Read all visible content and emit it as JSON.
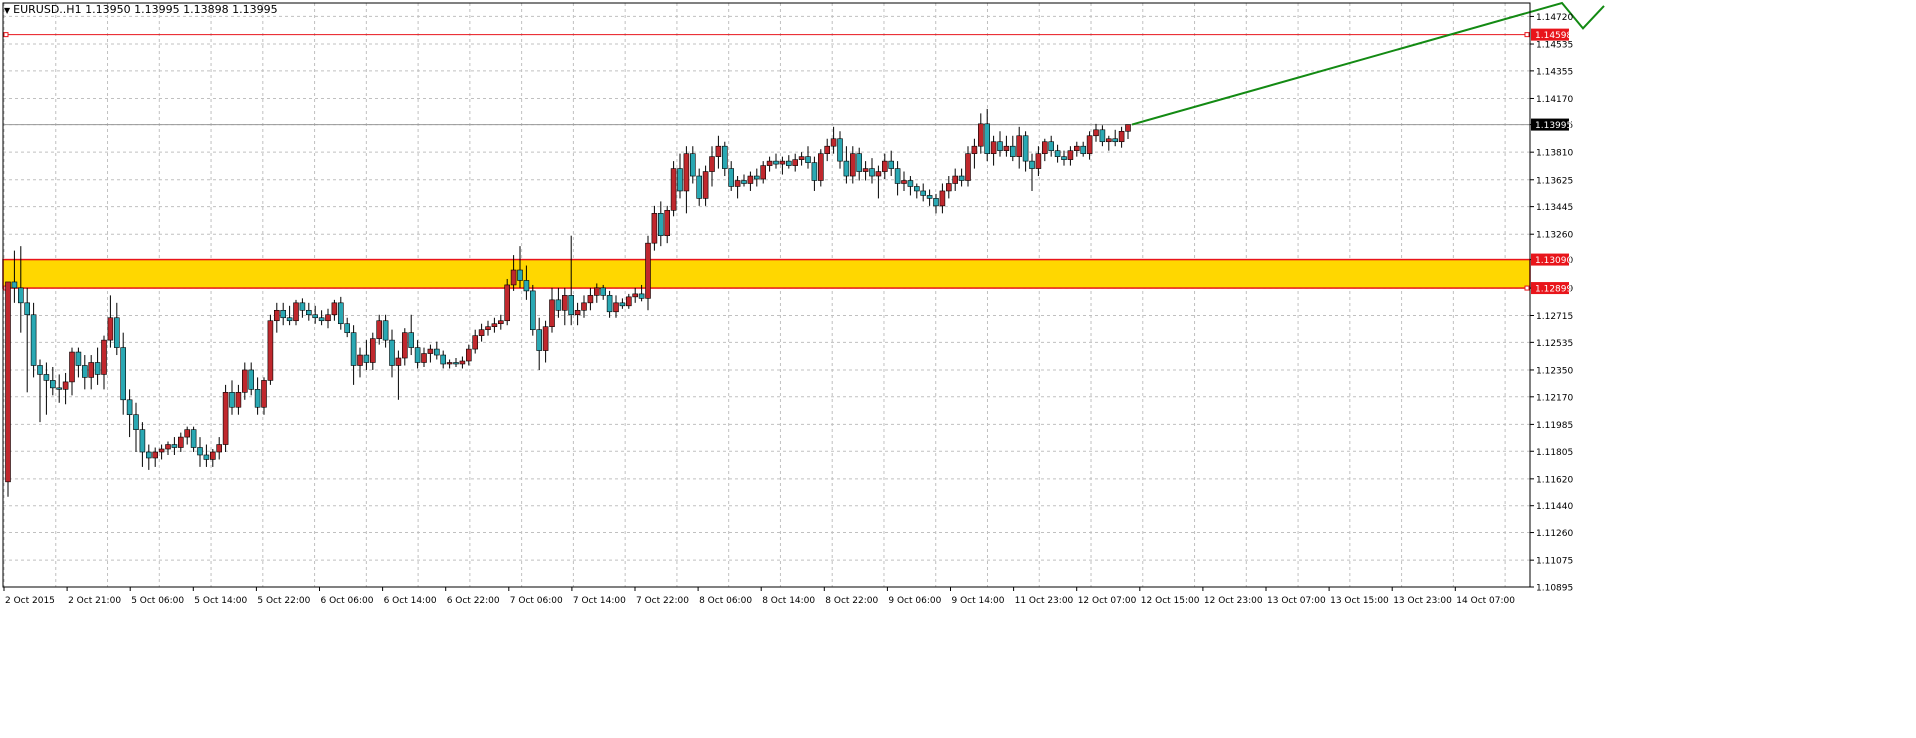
{
  "header": {
    "symbol": "EURUSD..H1",
    "open": "1.13950",
    "high": "1.13995",
    "low": "1.13898",
    "close": "1.13995"
  },
  "colors": {
    "background": "#ffffff",
    "grid": "#c0c0c0",
    "bull_candle": "#c0282d",
    "bear_candle": "#2aa8b3",
    "wick": "#000000",
    "zone_fill": "#ffd700",
    "zone_border": "#e8151b",
    "resistance_line": "#e8151b",
    "current_price_line": "#9a9a9a",
    "projection": "#138a13",
    "axis_tag_bg": "#e8151b",
    "current_tag_bg": "#000000"
  },
  "chart_data": {
    "type": "candlestick",
    "timeframe": "H1",
    "grid": true,
    "ylim": [
      1.10895,
      1.1481
    ],
    "y_ticks": [
      "1.14720",
      "1.14535",
      "1.14355",
      "1.14170",
      "1.13995",
      "1.13810",
      "1.13625",
      "1.13445",
      "1.13260",
      "1.13090",
      "1.12899",
      "1.12715",
      "1.12535",
      "1.12350",
      "1.12170",
      "1.11985",
      "1.11805",
      "1.11620",
      "1.11440",
      "1.11260",
      "1.11075",
      "1.10895"
    ],
    "x_ticks": [
      "2 Oct 2015",
      "2 Oct 21:00",
      "5 Oct 06:00",
      "5 Oct 14:00",
      "5 Oct 22:00",
      "6 Oct 06:00",
      "6 Oct 14:00",
      "6 Oct 22:00",
      "7 Oct 06:00",
      "7 Oct 14:00",
      "7 Oct 22:00",
      "8 Oct 06:00",
      "8 Oct 14:00",
      "8 Oct 22:00",
      "9 Oct 06:00",
      "9 Oct 14:00",
      "11 Oct 23:00",
      "12 Oct 07:00",
      "12 Oct 15:00",
      "12 Oct 23:00",
      "13 Oct 07:00",
      "13 Oct 15:00",
      "13 Oct 23:00",
      "14 Oct 07:00"
    ],
    "levels": {
      "resistance": "1.14598",
      "zone_top": "1.13090",
      "zone_bottom": "1.12899",
      "current": "1.13995"
    },
    "candles": [
      [
        1.116,
        1.1294,
        1.115,
        1.1294
      ],
      [
        1.1294,
        1.1315,
        1.128,
        1.129
      ],
      [
        1.129,
        1.1318,
        1.126,
        1.128
      ],
      [
        1.128,
        1.129,
        1.122,
        1.1272
      ],
      [
        1.1272,
        1.128,
        1.123,
        1.1238
      ],
      [
        1.1238,
        1.1242,
        1.12,
        1.1232
      ],
      [
        1.1232,
        1.124,
        1.1205,
        1.1228
      ],
      [
        1.1228,
        1.1237,
        1.1218,
        1.1223
      ],
      [
        1.1223,
        1.1232,
        1.1213,
        1.1222
      ],
      [
        1.1222,
        1.1233,
        1.1212,
        1.1227
      ],
      [
        1.1227,
        1.125,
        1.1218,
        1.1247
      ],
      [
        1.1247,
        1.125,
        1.123,
        1.1238
      ],
      [
        1.1238,
        1.1245,
        1.1222,
        1.123
      ],
      [
        1.123,
        1.1245,
        1.1222,
        1.124
      ],
      [
        1.124,
        1.125,
        1.1225,
        1.1232
      ],
      [
        1.1232,
        1.1258,
        1.1222,
        1.1255
      ],
      [
        1.1255,
        1.1285,
        1.125,
        1.127
      ],
      [
        1.127,
        1.128,
        1.1245,
        1.125
      ],
      [
        1.125,
        1.126,
        1.1205,
        1.1215
      ],
      [
        1.1215,
        1.1222,
        1.119,
        1.1205
      ],
      [
        1.1205,
        1.1213,
        1.118,
        1.1195
      ],
      [
        1.1195,
        1.12,
        1.117,
        1.118
      ],
      [
        1.118,
        1.1185,
        1.1168,
        1.1176
      ],
      [
        1.1176,
        1.1183,
        1.117,
        1.118
      ],
      [
        1.118,
        1.1185,
        1.1175,
        1.1182
      ],
      [
        1.1182,
        1.1187,
        1.1178,
        1.1185
      ],
      [
        1.1185,
        1.119,
        1.1178,
        1.1183
      ],
      [
        1.1183,
        1.1193,
        1.118,
        1.119
      ],
      [
        1.119,
        1.1197,
        1.1185,
        1.1195
      ],
      [
        1.1195,
        1.1197,
        1.118,
        1.1183
      ],
      [
        1.1183,
        1.119,
        1.117,
        1.1178
      ],
      [
        1.1178,
        1.1185,
        1.117,
        1.1175
      ],
      [
        1.1175,
        1.1182,
        1.117,
        1.118
      ],
      [
        1.118,
        1.119,
        1.1175,
        1.1185
      ],
      [
        1.1185,
        1.1225,
        1.118,
        1.122
      ],
      [
        1.122,
        1.1228,
        1.1205,
        1.121
      ],
      [
        1.121,
        1.1225,
        1.1205,
        1.122
      ],
      [
        1.122,
        1.124,
        1.1215,
        1.1235
      ],
      [
        1.1235,
        1.124,
        1.1218,
        1.1222
      ],
      [
        1.1222,
        1.123,
        1.1205,
        1.121
      ],
      [
        1.121,
        1.123,
        1.1205,
        1.1228
      ],
      [
        1.1228,
        1.1272,
        1.1225,
        1.1268
      ],
      [
        1.1268,
        1.128,
        1.126,
        1.1275
      ],
      [
        1.1275,
        1.128,
        1.1265,
        1.127
      ],
      [
        1.127,
        1.1278,
        1.1265,
        1.1268
      ],
      [
        1.1268,
        1.1282,
        1.1265,
        1.128
      ],
      [
        1.128,
        1.1283,
        1.127,
        1.1275
      ],
      [
        1.1275,
        1.128,
        1.1268,
        1.1272
      ],
      [
        1.1272,
        1.1278,
        1.1266,
        1.127
      ],
      [
        1.127,
        1.1275,
        1.1265,
        1.1268
      ],
      [
        1.1268,
        1.1276,
        1.1263,
        1.1272
      ],
      [
        1.1272,
        1.1282,
        1.1268,
        1.128
      ],
      [
        1.128,
        1.1284,
        1.1262,
        1.1266
      ],
      [
        1.1266,
        1.127,
        1.1257,
        1.126
      ],
      [
        1.126,
        1.1265,
        1.1225,
        1.1238
      ],
      [
        1.1238,
        1.125,
        1.123,
        1.1245
      ],
      [
        1.1245,
        1.1255,
        1.1235,
        1.124
      ],
      [
        1.124,
        1.126,
        1.1235,
        1.1256
      ],
      [
        1.1256,
        1.1272,
        1.1252,
        1.1268
      ],
      [
        1.1268,
        1.1272,
        1.125,
        1.1255
      ],
      [
        1.1255,
        1.1262,
        1.123,
        1.1238
      ],
      [
        1.1238,
        1.1248,
        1.1215,
        1.1243
      ],
      [
        1.1243,
        1.1263,
        1.1238,
        1.126
      ],
      [
        1.126,
        1.1272,
        1.1245,
        1.125
      ],
      [
        1.125,
        1.1255,
        1.1236,
        1.124
      ],
      [
        1.124,
        1.125,
        1.1237,
        1.1246
      ],
      [
        1.1246,
        1.1252,
        1.124,
        1.1249
      ],
      [
        1.1249,
        1.1254,
        1.1242,
        1.1245
      ],
      [
        1.1245,
        1.1248,
        1.1236,
        1.1239
      ],
      [
        1.1239,
        1.1242,
        1.1236,
        1.124
      ],
      [
        1.124,
        1.1243,
        1.1237,
        1.1239
      ],
      [
        1.1239,
        1.1244,
        1.1236,
        1.1241
      ],
      [
        1.1241,
        1.1252,
        1.1238,
        1.1249
      ],
      [
        1.1249,
        1.1262,
        1.1246,
        1.1258
      ],
      [
        1.1258,
        1.1266,
        1.1254,
        1.1262
      ],
      [
        1.1262,
        1.1268,
        1.1258,
        1.1264
      ],
      [
        1.1264,
        1.127,
        1.126,
        1.1266
      ],
      [
        1.1266,
        1.1272,
        1.1262,
        1.1268
      ],
      [
        1.1268,
        1.1296,
        1.1265,
        1.1292
      ],
      [
        1.1292,
        1.1312,
        1.1288,
        1.1302
      ],
      [
        1.1302,
        1.1318,
        1.129,
        1.1295
      ],
      [
        1.1295,
        1.1305,
        1.1282,
        1.1288
      ],
      [
        1.1288,
        1.1292,
        1.1258,
        1.1262
      ],
      [
        1.1262,
        1.127,
        1.1235,
        1.1248
      ],
      [
        1.1248,
        1.1268,
        1.124,
        1.1264
      ],
      [
        1.1264,
        1.129,
        1.126,
        1.1282
      ],
      [
        1.1282,
        1.129,
        1.127,
        1.1275
      ],
      [
        1.1275,
        1.129,
        1.1265,
        1.1285
      ],
      [
        1.1285,
        1.1325,
        1.1265,
        1.1272
      ],
      [
        1.1272,
        1.128,
        1.1265,
        1.1275
      ],
      [
        1.1275,
        1.1285,
        1.127,
        1.128
      ],
      [
        1.128,
        1.129,
        1.1275,
        1.1285
      ],
      [
        1.1285,
        1.1293,
        1.128,
        1.129
      ],
      [
        1.129,
        1.1292,
        1.1282,
        1.1285
      ],
      [
        1.1285,
        1.1288,
        1.127,
        1.1274
      ],
      [
        1.1274,
        1.1285,
        1.127,
        1.128
      ],
      [
        1.128,
        1.1283,
        1.1276,
        1.1278
      ],
      [
        1.1278,
        1.1286,
        1.1276,
        1.1284
      ],
      [
        1.1284,
        1.129,
        1.128,
        1.1286
      ],
      [
        1.1286,
        1.1292,
        1.1281,
        1.1283
      ],
      [
        1.1283,
        1.1325,
        1.1275,
        1.132
      ],
      [
        1.132,
        1.1345,
        1.1315,
        1.134
      ],
      [
        1.134,
        1.1348,
        1.1318,
        1.1325
      ],
      [
        1.1325,
        1.1345,
        1.132,
        1.1342
      ],
      [
        1.1342,
        1.1375,
        1.1338,
        1.137
      ],
      [
        1.137,
        1.138,
        1.135,
        1.1355
      ],
      [
        1.1355,
        1.1385,
        1.134,
        1.138
      ],
      [
        1.138,
        1.1385,
        1.136,
        1.1365
      ],
      [
        1.1365,
        1.137,
        1.1345,
        1.135
      ],
      [
        1.135,
        1.1372,
        1.1345,
        1.1368
      ],
      [
        1.1368,
        1.1385,
        1.1358,
        1.1378
      ],
      [
        1.1378,
        1.1392,
        1.137,
        1.1385
      ],
      [
        1.1385,
        1.1388,
        1.1365,
        1.137
      ],
      [
        1.137,
        1.1375,
        1.1355,
        1.1358
      ],
      [
        1.1358,
        1.1365,
        1.135,
        1.1362
      ],
      [
        1.1362,
        1.1366,
        1.1358,
        1.136
      ],
      [
        1.136,
        1.1368,
        1.1355,
        1.1365
      ],
      [
        1.1365,
        1.137,
        1.1358,
        1.1363
      ],
      [
        1.1363,
        1.1375,
        1.136,
        1.1372
      ],
      [
        1.1372,
        1.1378,
        1.1368,
        1.1375
      ],
      [
        1.1375,
        1.138,
        1.137,
        1.1373
      ],
      [
        1.1373,
        1.1378,
        1.1366,
        1.1375
      ],
      [
        1.1375,
        1.1379,
        1.137,
        1.1372
      ],
      [
        1.1372,
        1.138,
        1.1368,
        1.1376
      ],
      [
        1.1376,
        1.1381,
        1.1372,
        1.1378
      ],
      [
        1.1378,
        1.1385,
        1.137,
        1.1374
      ],
      [
        1.1374,
        1.1378,
        1.1355,
        1.1362
      ],
      [
        1.1362,
        1.1383,
        1.1358,
        1.138
      ],
      [
        1.138,
        1.139,
        1.1375,
        1.1385
      ],
      [
        1.1385,
        1.1398,
        1.138,
        1.139
      ],
      [
        1.139,
        1.1395,
        1.137,
        1.1375
      ],
      [
        1.1375,
        1.1385,
        1.136,
        1.1365
      ],
      [
        1.1365,
        1.1385,
        1.136,
        1.138
      ],
      [
        1.138,
        1.1384,
        1.1362,
        1.1368
      ],
      [
        1.1368,
        1.1375,
        1.1362,
        1.137
      ],
      [
        1.137,
        1.1377,
        1.136,
        1.1365
      ],
      [
        1.1365,
        1.1372,
        1.135,
        1.1368
      ],
      [
        1.1368,
        1.138,
        1.1363,
        1.1375
      ],
      [
        1.1375,
        1.1382,
        1.1365,
        1.137
      ],
      [
        1.137,
        1.1375,
        1.1352,
        1.136
      ],
      [
        1.136,
        1.1368,
        1.1355,
        1.1362
      ],
      [
        1.1362,
        1.1365,
        1.1352,
        1.1358
      ],
      [
        1.1358,
        1.136,
        1.135,
        1.1355
      ],
      [
        1.1355,
        1.136,
        1.1348,
        1.1352
      ],
      [
        1.1352,
        1.1356,
        1.1345,
        1.135
      ],
      [
        1.135,
        1.1353,
        1.134,
        1.1345
      ],
      [
        1.1345,
        1.136,
        1.134,
        1.1355
      ],
      [
        1.1355,
        1.1365,
        1.135,
        1.136
      ],
      [
        1.136,
        1.137,
        1.1355,
        1.1365
      ],
      [
        1.1365,
        1.137,
        1.1358,
        1.1362
      ],
      [
        1.1362,
        1.1385,
        1.1358,
        1.138
      ],
      [
        1.138,
        1.139,
        1.137,
        1.1385
      ],
      [
        1.1385,
        1.1407,
        1.138,
        1.14
      ],
      [
        1.14,
        1.141,
        1.1375,
        1.138
      ],
      [
        1.138,
        1.1392,
        1.1372,
        1.1388
      ],
      [
        1.1388,
        1.1395,
        1.1378,
        1.1382
      ],
      [
        1.1382,
        1.1392,
        1.1378,
        1.1385
      ],
      [
        1.1385,
        1.1392,
        1.1375,
        1.1378
      ],
      [
        1.1378,
        1.1398,
        1.137,
        1.1392
      ],
      [
        1.1392,
        1.1395,
        1.1368,
        1.1375
      ],
      [
        1.1375,
        1.138,
        1.1355,
        1.137
      ],
      [
        1.137,
        1.1385,
        1.1365,
        1.138
      ],
      [
        1.138,
        1.139,
        1.1375,
        1.1388
      ],
      [
        1.1388,
        1.1392,
        1.1378,
        1.1382
      ],
      [
        1.1382,
        1.1386,
        1.1374,
        1.1378
      ],
      [
        1.1378,
        1.1382,
        1.1372,
        1.1376
      ],
      [
        1.1376,
        1.1385,
        1.1372,
        1.1382
      ],
      [
        1.1382,
        1.1388,
        1.1378,
        1.1385
      ],
      [
        1.1385,
        1.1388,
        1.1378,
        1.138
      ],
      [
        1.138,
        1.1395,
        1.1376,
        1.1392
      ],
      [
        1.1392,
        1.14,
        1.1388,
        1.1396
      ],
      [
        1.1396,
        1.1399,
        1.1385,
        1.1388
      ],
      [
        1.1388,
        1.1392,
        1.1382,
        1.139
      ],
      [
        1.139,
        1.1396,
        1.1385,
        1.1388
      ],
      [
        1.1388,
        1.1398,
        1.1384,
        1.1395
      ],
      [
        1.1395,
        1.13995,
        1.13898,
        1.13995
      ]
    ],
    "projection": [
      1.13995,
      1.1481,
      1.1464,
      1.1479
    ]
  }
}
